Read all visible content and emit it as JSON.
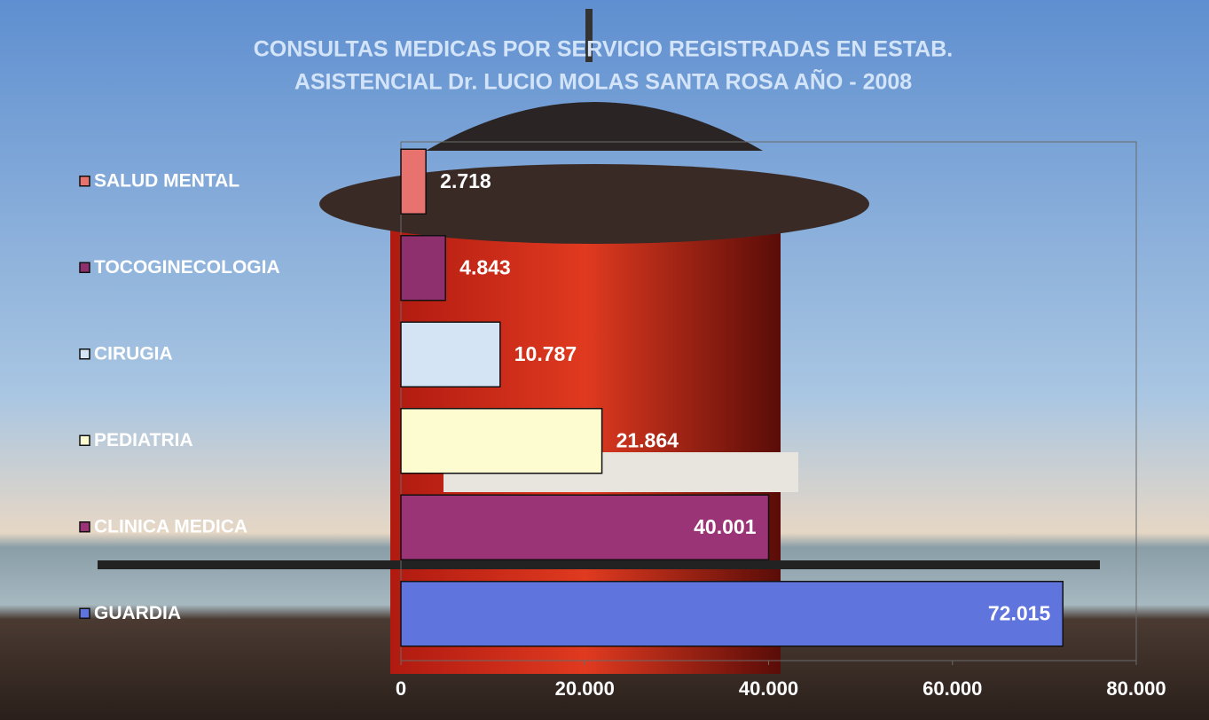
{
  "chart_data": {
    "type": "bar",
    "orientation": "horizontal",
    "title": [
      "CONSULTAS MEDICAS POR SERVICIO REGISTRADAS EN ESTAB.",
      "ASISTENCIAL Dr. LUCIO MOLAS SANTA ROSA AÑO - 2008"
    ],
    "categories": [
      "SALUD MENTAL",
      "TOCOGINECOLOGIA",
      "CIRUGIA",
      "PEDIATRIA",
      "CLINICA MEDICA",
      "GUARDIA"
    ],
    "values": [
      2718,
      4843,
      10787,
      21864,
      40001,
      72015
    ],
    "value_labels": [
      "2.718",
      "4.843",
      "10.787",
      "21.864",
      "40.001",
      "72.015"
    ],
    "colors": [
      "#e8736e",
      "#8e2f6e",
      "#d4e4f4",
      "#fdfbd0",
      "#9a3476",
      "#5f74dc"
    ],
    "xlim": [
      0,
      80000
    ],
    "xticks": [
      0,
      {
        "value": 20000,
        "label": "20.000"
      },
      {
        "value": 40000,
        "label": "40.000"
      },
      {
        "value": 60000,
        "label": "60.000"
      },
      {
        "value": 80000,
        "label": "80.000"
      }
    ]
  }
}
